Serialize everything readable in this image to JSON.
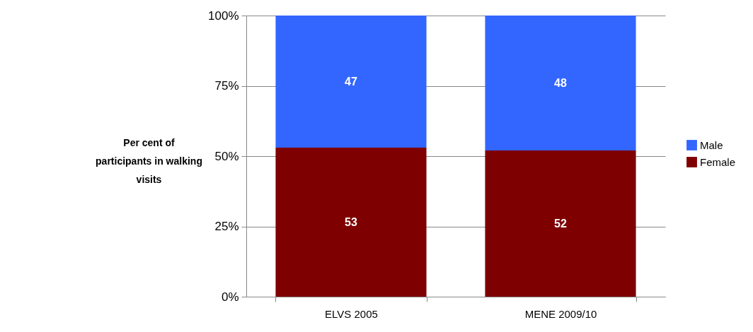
{
  "chart_data": {
    "type": "bar",
    "stacked": true,
    "ylabel": "Per cent of participants in walking visits",
    "categories": [
      "ELVS 2005",
      "MENE 2009/10"
    ],
    "series": [
      {
        "name": "Female",
        "color": "#7f0000",
        "values": [
          53,
          52
        ]
      },
      {
        "name": "Male",
        "color": "#3366ff",
        "values": [
          47,
          48
        ]
      }
    ],
    "ylim": [
      0,
      100
    ],
    "yticks": [
      {
        "value": 0,
        "label": "0%"
      },
      {
        "value": 25,
        "label": "25%"
      },
      {
        "value": 50,
        "label": "50%"
      },
      {
        "value": 75,
        "label": "75%"
      },
      {
        "value": 100,
        "label": "100%"
      }
    ],
    "grid": "y",
    "legend": "right",
    "data_labels": true
  }
}
